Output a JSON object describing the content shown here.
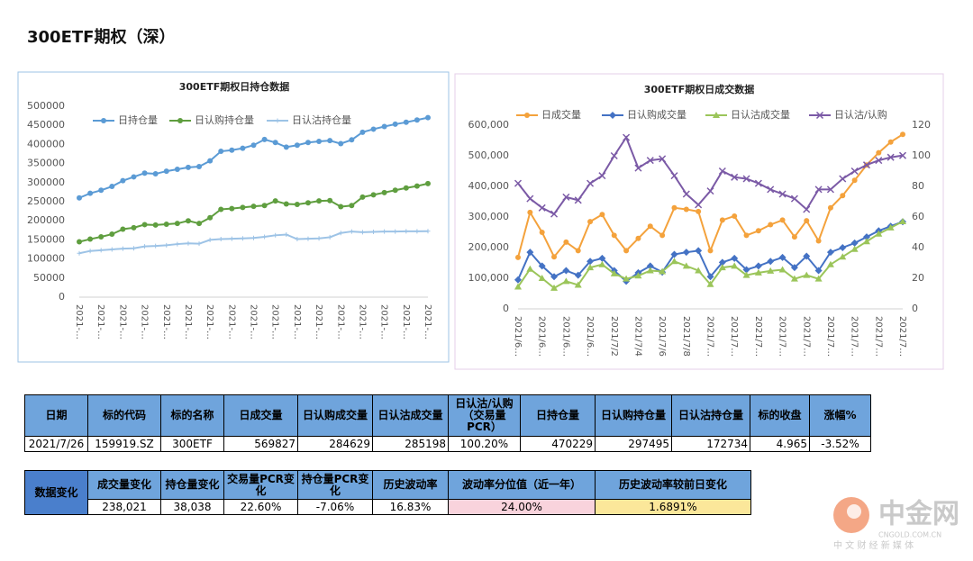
{
  "title": "300ETF期权（深）",
  "chart_data": [
    {
      "type": "line",
      "title": "300ETF期权日持仓数据",
      "categories": [
        "2021-…",
        null,
        "2021-…",
        null,
        "2021-…",
        null,
        "2021-…",
        null,
        "2021-…",
        null,
        "2021-…",
        null,
        "2021-…",
        null,
        "2021-…",
        null,
        "2021-…",
        null,
        "2021-…",
        null,
        "2021-…",
        null,
        "2021-…",
        null,
        "2021-…",
        null,
        "2021-…",
        null,
        "2021-…",
        null,
        "2021-…",
        null,
        "2021-…"
      ],
      "series": [
        {
          "name": "日持仓量",
          "color": "#5b9bd5",
          "marker": "circle",
          "values": [
            260000,
            272000,
            280000,
            290000,
            305000,
            315000,
            325000,
            323000,
            330000,
            335000,
            340000,
            342000,
            357000,
            382000,
            385000,
            390000,
            398000,
            413000,
            405000,
            393000,
            398000,
            405000,
            408000,
            410000,
            402000,
            412000,
            432000,
            440000,
            447000,
            453000,
            458000,
            464000,
            470229
          ]
        },
        {
          "name": "日认购持仓量",
          "color": "#5f9e3f",
          "marker": "circle",
          "values": [
            145000,
            152000,
            158000,
            165000,
            178000,
            182000,
            190000,
            189000,
            191000,
            193000,
            200000,
            193000,
            208000,
            230000,
            232000,
            235000,
            238000,
            240000,
            252000,
            244000,
            243000,
            247000,
            252000,
            253000,
            237000,
            240000,
            262000,
            268000,
            274000,
            280000,
            286000,
            291000,
            297495
          ]
        },
        {
          "name": "日认沽持仓量",
          "color": "#9dc3e6",
          "marker": "plus",
          "values": [
            115000,
            121000,
            123000,
            125000,
            127000,
            128000,
            133000,
            134000,
            136000,
            139000,
            141000,
            140000,
            150000,
            152000,
            153000,
            154000,
            155000,
            158000,
            162000,
            164000,
            152000,
            153000,
            154000,
            157000,
            168000,
            172000,
            170000,
            171000,
            172000,
            172000,
            172500,
            172600,
            172734
          ]
        }
      ],
      "ylim": [
        0,
        500000
      ],
      "yticks": [
        0,
        50000,
        100000,
        150000,
        200000,
        250000,
        300000,
        350000,
        400000,
        450000,
        500000
      ],
      "grid": false,
      "legend": "top"
    },
    {
      "type": "line",
      "title": "300ETF期权日成交数据",
      "categories": [
        "2021/6…",
        null,
        "2021/6…",
        null,
        "2021/6…",
        null,
        "2021/6…",
        null,
        "2021/7/2",
        null,
        "2021/7/4",
        null,
        "2021/7/6",
        null,
        "2021/7/8",
        null,
        "2021/7…",
        null,
        "2021/7…",
        null,
        "2021/7…",
        null,
        "2021/7…",
        null,
        "2021/7…",
        null,
        "2021/7…",
        null,
        "2021/7…",
        null,
        "2021/7…",
        null,
        "2021/7…"
      ],
      "series": [
        {
          "name": "日成交量",
          "color": "#f4a23c",
          "marker": "circle",
          "values": [
            168000,
            315000,
            250000,
            170000,
            218000,
            190000,
            285000,
            308000,
            240000,
            190000,
            230000,
            270000,
            240000,
            330000,
            325000,
            318000,
            190000,
            290000,
            303000,
            240000,
            255000,
            275000,
            290000,
            235000,
            288000,
            222000,
            330000,
            370000,
            420000,
            470000,
            510000,
            545000,
            569827
          ]
        },
        {
          "name": "日认购成交量",
          "color": "#4472c4",
          "marker": "diamond",
          "values": [
            95000,
            185000,
            140000,
            105000,
            125000,
            110000,
            155000,
            165000,
            125000,
            90000,
            118000,
            140000,
            120000,
            178000,
            185000,
            190000,
            105000,
            152000,
            165000,
            128000,
            140000,
            155000,
            168000,
            135000,
            172000,
            125000,
            185000,
            200000,
            215000,
            235000,
            255000,
            270000,
            284629
          ]
        },
        {
          "name": "日认沽成交量",
          "color": "#9bc55a",
          "marker": "triangle",
          "values": [
            72000,
            130000,
            100000,
            68000,
            90000,
            78000,
            135000,
            145000,
            115000,
            98000,
            108000,
            125000,
            122000,
            155000,
            140000,
            125000,
            80000,
            135000,
            140000,
            110000,
            118000,
            124000,
            128000,
            98000,
            110000,
            98000,
            145000,
            170000,
            195000,
            220000,
            245000,
            265000,
            285198
          ]
        },
        {
          "name": "日认沽/认购",
          "color": "#7b5aa6",
          "marker": "x",
          "axis": "y2",
          "values": [
            82,
            72,
            66,
            62,
            73,
            71,
            82,
            87,
            100,
            112,
            92,
            97,
            98,
            87,
            75,
            68,
            77,
            90,
            86,
            85,
            82,
            78,
            75,
            72,
            65,
            78,
            78,
            85,
            90,
            94,
            97,
            99,
            100.2
          ]
        }
      ],
      "ylim": [
        0,
        600000
      ],
      "yticks": [
        0,
        {
          "value": 100000,
          "label": "100,000"
        },
        {
          "value": 200000,
          "label": "200,000"
        },
        {
          "value": 300000,
          "label": "300,000"
        },
        {
          "value": 400000,
          "label": "400,000"
        },
        {
          "value": 500000,
          "label": "500,000"
        },
        {
          "value": 600000,
          "label": "600,000"
        }
      ],
      "y2lim": [
        0,
        120
      ],
      "y2ticks": [
        0,
        20,
        40,
        60,
        80,
        100,
        120
      ],
      "grid": false,
      "legend": "top"
    }
  ],
  "table1": {
    "headers": [
      "日期",
      "标的代码",
      "标的名称",
      "日成交量",
      "日认购成交量",
      "日认沽成交量",
      "日认沽/认购（交易量PCR）",
      "日持仓量",
      "日认购持仓量",
      "日认沽持仓量",
      "标的收盘",
      "涨幅%"
    ],
    "rows": [
      [
        "2021/7/26",
        "159919.SZ",
        "300ETF",
        "569827",
        "284629",
        "285198",
        "100.20%",
        "470229",
        "297495",
        "172734",
        "4.965",
        "-3.52%"
      ]
    ]
  },
  "table2": {
    "label": "数据变化",
    "headers": [
      "成交量变化",
      "持仓量变化",
      "交易量PCR变化",
      "持仓量PCR变化",
      "历史波动率",
      "波动率分位值（近一年）",
      "历史波动率较前日变化"
    ],
    "rows": [
      [
        "238,021",
        "38,038",
        "22.60%",
        "-7.06%",
        "16.83%",
        "24.00%",
        "1.6891%"
      ]
    ]
  },
  "watermark": {
    "brand": "中金网",
    "domain": "CNGOLD.COM.CN",
    "slogan": "中 文 财 经 新 媒 体"
  }
}
